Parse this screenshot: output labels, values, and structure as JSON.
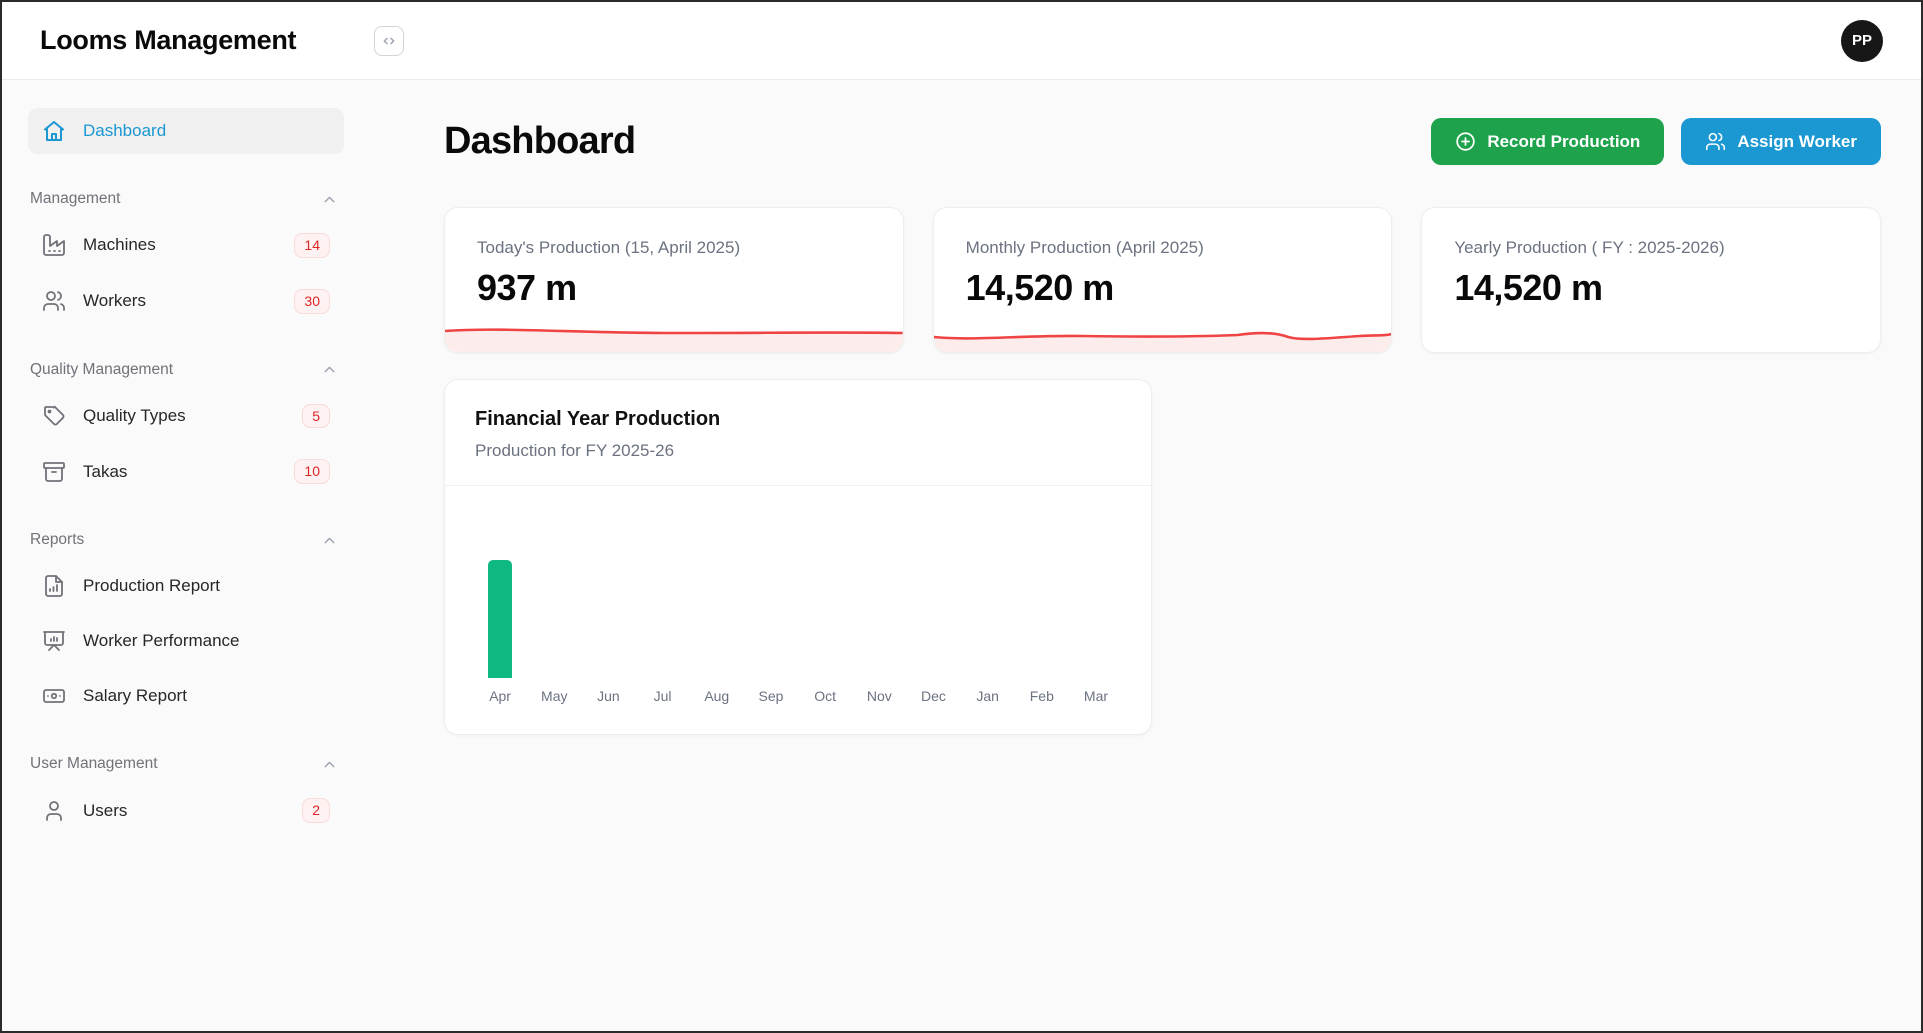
{
  "header": {
    "title": "Looms Management",
    "code_button_tooltip": "toggle code",
    "avatar_initials": "PP"
  },
  "sidebar": {
    "dashboard": {
      "label": "Dashboard",
      "icon": "home",
      "active": true
    },
    "sections": [
      {
        "label": "Management",
        "items": [
          {
            "label": "Machines",
            "icon": "factory",
            "badge": "14"
          },
          {
            "label": "Workers",
            "icon": "users",
            "badge": "30"
          }
        ]
      },
      {
        "label": "Quality Management",
        "items": [
          {
            "label": "Quality Types",
            "icon": "tag",
            "badge": "5"
          },
          {
            "label": "Takas",
            "icon": "archive",
            "badge": "10"
          }
        ]
      },
      {
        "label": "Reports",
        "items": [
          {
            "label": "Production Report",
            "icon": "file-chart"
          },
          {
            "label": "Worker Performance",
            "icon": "presentation"
          },
          {
            "label": "Salary Report",
            "icon": "banknote"
          }
        ]
      },
      {
        "label": "User Management",
        "items": [
          {
            "label": "Users",
            "icon": "user",
            "badge": "2"
          }
        ]
      }
    ]
  },
  "main": {
    "page_title": "Dashboard",
    "actions": [
      {
        "label": "Record Production",
        "icon": "plus-circle",
        "color": "#1ea24b"
      },
      {
        "label": "Assign Worker",
        "icon": "users",
        "color": "#1b98d2"
      }
    ],
    "stat_cards": [
      {
        "label": "Today's Production (15, April 2025)",
        "value": "937 m",
        "sparkline": "flat"
      },
      {
        "label": "Monthly Production (April 2025)",
        "value": "14,520 m",
        "sparkline": "wavy"
      },
      {
        "label": "Yearly Production ( FY : 2025-2026)",
        "value": "14,520 m",
        "sparkline": "none"
      }
    ],
    "chart_card": {
      "title": "Financial Year Production",
      "subtitle": "Production for FY 2025-26"
    }
  },
  "chart_data": {
    "type": "bar",
    "title": "Financial Year Production",
    "subtitle": "Production for FY 2025-26",
    "categories": [
      "Apr",
      "May",
      "Jun",
      "Jul",
      "Aug",
      "Sep",
      "Oct",
      "Nov",
      "Dec",
      "Jan",
      "Feb",
      "Mar"
    ],
    "values": [
      14520,
      0,
      0,
      0,
      0,
      0,
      0,
      0,
      0,
      0,
      0,
      0
    ],
    "xlabel": "",
    "ylabel": "",
    "ylim": [
      0,
      20000
    ],
    "grid": false,
    "legend": false,
    "bar_color": "#10b981"
  },
  "colors": {
    "accent_blue": "#1b98d2",
    "accent_green": "#1ea24b",
    "bar_green": "#10b981",
    "spark_red": "#ef4444",
    "spark_fill": "#fdecec",
    "badge_red": "#dc2626",
    "badge_bg": "#fdf1f1"
  }
}
